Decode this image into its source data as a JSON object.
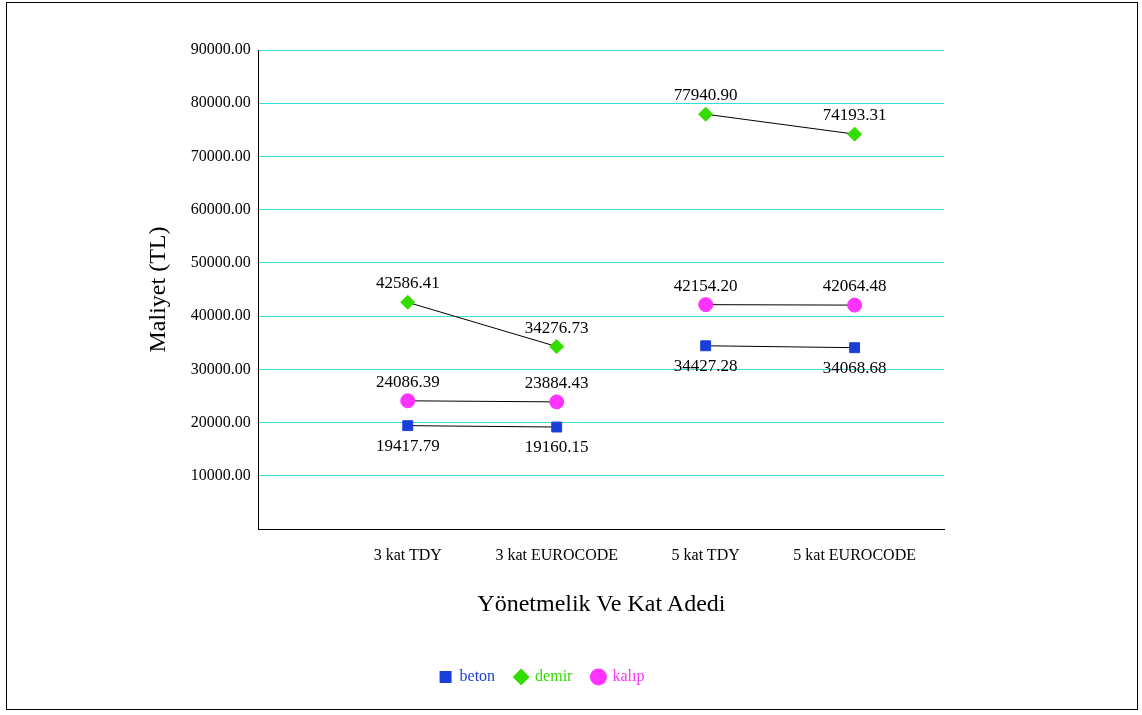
{
  "chart_data": {
    "type": "line",
    "xlabel": "Yönetmelik Ve Kat Adedi",
    "ylabel": "Maliyet (TL)",
    "categories": [
      "3 kat TDY",
      "3 kat EUROCODE",
      "5 kat TDY",
      "5 kat EUROCODE"
    ],
    "series": [
      {
        "name": "beton",
        "color": "#1a3fd8",
        "marker": "square",
        "values": [
          19417.79,
          19160.15,
          34427.28,
          34068.68
        ],
        "value_labels": [
          "19417.79",
          "19160.15",
          "34427.28",
          "34068.68"
        ]
      },
      {
        "name": "demir",
        "color": "#33dd00",
        "marker": "diamond",
        "values": [
          42586.41,
          34276.73,
          77940.9,
          74193.31
        ],
        "value_labels": [
          "42586.41",
          "34276.73",
          "77940.90",
          "74193.31"
        ]
      },
      {
        "name": "kalıp",
        "color": "#ff33ff",
        "marker": "circle",
        "values": [
          24086.39,
          23884.43,
          42154.2,
          42064.48
        ],
        "value_labels": [
          "24086.39",
          "23884.43",
          "42154.20",
          "42064.48"
        ]
      }
    ],
    "ylim": [
      0,
      90000
    ],
    "yticks": [
      {
        "value": 10000,
        "label": "10000.00"
      },
      {
        "value": 20000,
        "label": "20000.00"
      },
      {
        "value": 30000,
        "label": "30000.00"
      },
      {
        "value": 40000,
        "label": "40000.00"
      },
      {
        "value": 50000,
        "label": "50000.00"
      },
      {
        "value": 60000,
        "label": "60000.00"
      },
      {
        "value": 70000,
        "label": "70000.00"
      },
      {
        "value": 80000,
        "label": "80000.00"
      },
      {
        "value": 90000,
        "label": "90000.00"
      }
    ],
    "grid": "y",
    "legend": "bottom",
    "line_style": "solid"
  }
}
